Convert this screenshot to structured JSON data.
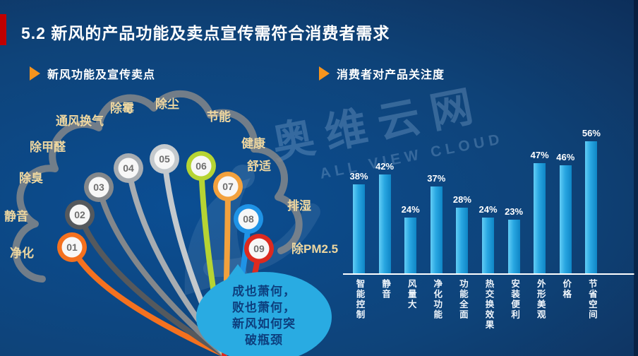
{
  "slide": {
    "title": "5.2 新风的产品功能及卖点宣传需符合消费者需求",
    "accent_color": "#c00000"
  },
  "watermark": {
    "cn": "奥维云网",
    "en": "ALL VIEW CLOUD"
  },
  "left_panel": {
    "header": "新风功能及宣传卖点",
    "labels": [
      "净化",
      "静音",
      "除臭",
      "除甲醛",
      "通风换气",
      "除霉",
      "除尘",
      "节能",
      "健康",
      "舒适",
      "排湿",
      "除PM2.5"
    ],
    "balls": [
      {
        "num": "01",
        "color": "#f4711f"
      },
      {
        "num": "02",
        "color": "#55595d"
      },
      {
        "num": "03",
        "color": "#83878b"
      },
      {
        "num": "04",
        "color": "#a7acb1"
      },
      {
        "num": "05",
        "color": "#c4c9cd"
      },
      {
        "num": "06",
        "color": "#b6d433"
      },
      {
        "num": "07",
        "color": "#f2a13d"
      },
      {
        "num": "08",
        "color": "#1f93e6"
      },
      {
        "num": "09",
        "color": "#dd2a1f"
      }
    ],
    "bubble": {
      "lines": [
        "成也萧何，",
        "败也萧何，",
        "新风如何突",
        "破瓶颈"
      ],
      "fill": "#29abe2",
      "text_color": "#0d3f7e"
    }
  },
  "right_panel": {
    "header": "消费者对产品关注度"
  },
  "chart_data": {
    "type": "bar",
    "title": "消费者对产品关注度",
    "categories": [
      "智能控制",
      "静音",
      "风量大",
      "净化功能",
      "功能全面",
      "热交换效果",
      "安装便利",
      "外形美观",
      "价格",
      "节省空间"
    ],
    "values": [
      38,
      42,
      24,
      37,
      28,
      24,
      23,
      47,
      46,
      56
    ],
    "value_labels": [
      "38%",
      "42%",
      "24%",
      "37%",
      "28%",
      "24%",
      "23%",
      "47%",
      "46%",
      "56%"
    ],
    "unit": "%",
    "bar_color": "#2fb1e8",
    "ylim": [
      0,
      60
    ],
    "grid": false,
    "legend": "none"
  }
}
